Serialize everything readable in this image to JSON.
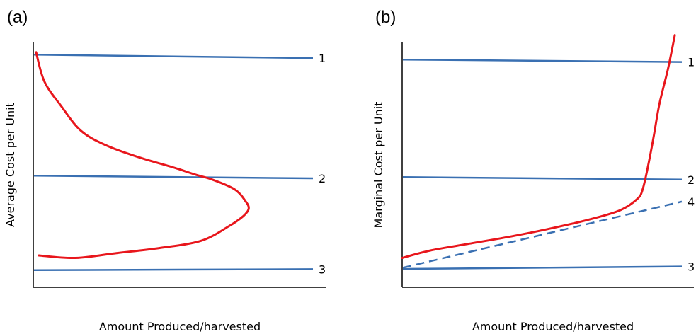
{
  "chart_data": [
    {
      "type": "line",
      "panel": "(a)",
      "xlabel": "Amount Produced/harvested",
      "ylabel": "Average Cost per Unit",
      "xlim": [
        0,
        1
      ],
      "ylim": [
        0,
        1
      ],
      "grid": false,
      "colors": {
        "curve": "#e8161c",
        "levels": "#3a70b2",
        "axes": "#000000"
      },
      "level_lines": [
        {
          "label": "1",
          "y": [
            0.95,
            0.936
          ],
          "style": "solid"
        },
        {
          "label": "2",
          "y": [
            0.456,
            0.445
          ],
          "style": "solid"
        },
        {
          "label": "3",
          "y": [
            0.07,
            0.074
          ],
          "style": "solid"
        }
      ],
      "curve": {
        "x": [
          0.01,
          0.04,
          0.1,
          0.17,
          0.26,
          0.38,
          0.5,
          0.58,
          0.64,
          0.72,
          0.76,
          0.77,
          0.75,
          0.7,
          0.6,
          0.45,
          0.3,
          0.15,
          0.02
        ],
        "y": [
          0.96,
          0.84,
          0.74,
          0.64,
          0.58,
          0.53,
          0.49,
          0.46,
          0.44,
          0.4,
          0.35,
          0.32,
          0.29,
          0.25,
          0.19,
          0.16,
          0.14,
          0.12,
          0.13
        ]
      }
    },
    {
      "type": "line",
      "panel": "(b)",
      "xlabel": "Amount Produced/harvested",
      "ylabel": "Marginal Cost per Unit",
      "xlim": [
        0,
        1
      ],
      "ylim": [
        0,
        1
      ],
      "grid": false,
      "colors": {
        "curve": "#e8161c",
        "levels": "#3a70b2",
        "axes": "#000000"
      },
      "level_lines": [
        {
          "label": "1",
          "y": [
            0.93,
            0.92
          ],
          "style": "solid"
        },
        {
          "label": "2",
          "y": [
            0.45,
            0.44
          ],
          "style": "solid"
        },
        {
          "label": "3",
          "y": [
            0.075,
            0.085
          ],
          "style": "solid"
        },
        {
          "label": "4",
          "y": [
            0.08,
            0.35
          ],
          "style": "dashed"
        }
      ],
      "curve": {
        "x": [
          0.0,
          0.1,
          0.25,
          0.4,
          0.55,
          0.68,
          0.78,
          0.84,
          0.86,
          0.88,
          0.9,
          0.92,
          0.95,
          0.975
        ],
        "y": [
          0.12,
          0.15,
          0.18,
          0.21,
          0.245,
          0.28,
          0.315,
          0.36,
          0.4,
          0.5,
          0.62,
          0.75,
          0.89,
          1.03
        ]
      }
    }
  ]
}
